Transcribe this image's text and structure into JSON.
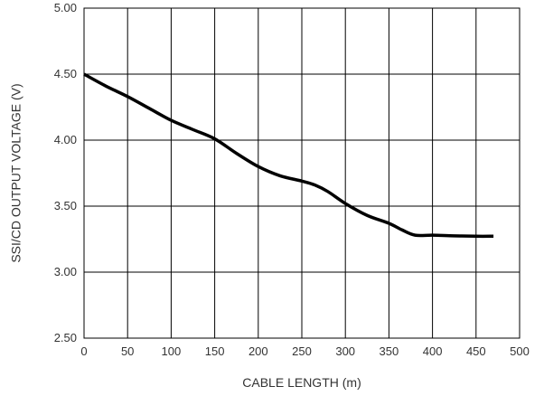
{
  "chart_data": {
    "type": "line",
    "title": "",
    "xlabel": "CABLE LENGTH (m)",
    "ylabel": "SSI/CD OUTPUT VOLTAGE (V)",
    "xlim": [
      0,
      500
    ],
    "ylim": [
      2.5,
      5.0
    ],
    "x_ticks": [
      0,
      50,
      100,
      150,
      200,
      250,
      300,
      350,
      400,
      450,
      500
    ],
    "x_tick_labels": [
      "0",
      "50",
      "100",
      "150",
      "200",
      "250",
      "300",
      "350",
      "400",
      "450",
      "500"
    ],
    "y_ticks": [
      2.5,
      3.0,
      3.5,
      4.0,
      4.5,
      5.0
    ],
    "y_tick_labels": [
      "2.50",
      "3.00",
      "3.50",
      "4.00",
      "4.50",
      "5.00"
    ],
    "grid": true,
    "legend": "none",
    "series": [
      {
        "color": "#000000",
        "x": [
          0,
          25,
          50,
          75,
          100,
          125,
          150,
          175,
          200,
          225,
          250,
          265,
          280,
          300,
          325,
          350,
          365,
          380,
          400,
          425,
          450,
          470
        ],
        "y": [
          4.5,
          4.41,
          4.33,
          4.24,
          4.15,
          4.08,
          4.01,
          3.9,
          3.8,
          3.73,
          3.69,
          3.66,
          3.61,
          3.52,
          3.43,
          3.37,
          3.32,
          3.28,
          3.28,
          3.275,
          3.272,
          3.272
        ]
      }
    ]
  }
}
